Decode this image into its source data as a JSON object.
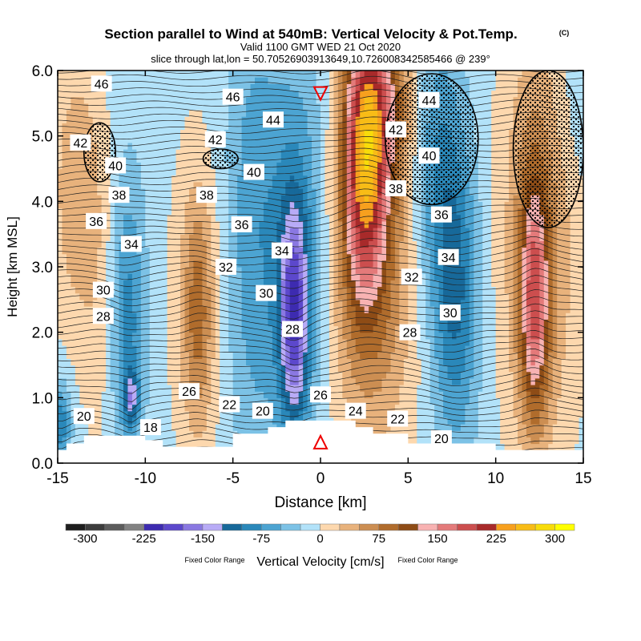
{
  "chart_data": {
    "type": "heatmap",
    "title": "Section parallel to Wind at 540mB: Vertical Velocity & Pot.Temp.",
    "title_mark": "(C)",
    "subtitle1": "Valid 1100 GMT WED 21 Oct 2020",
    "subtitle2": "slice through lat,lon = 50.70526903913649,10.726008342585466 @ 239°",
    "xlabel": "Distance [km]",
    "ylabel": "Height [km MSL]",
    "xlim": [
      -15,
      15
    ],
    "ylim": [
      0,
      6
    ],
    "xticks": [
      "-15",
      "-10",
      "-5",
      "0",
      "5",
      "10",
      "15"
    ],
    "yticks": [
      "0.0",
      "1.0",
      "2.0",
      "3.0",
      "4.0",
      "5.0",
      "6.0"
    ],
    "colorbar": {
      "label": "Vertical Velocity [cm/s]",
      "note_left": "Fixed Color Range",
      "note_right": "Fixed Color Range",
      "min": -325,
      "max": 325,
      "step": 25,
      "tick_labels": [
        "-300",
        "-225",
        "-150",
        "-75",
        "0",
        "75",
        "150",
        "225",
        "300"
      ],
      "colors": [
        "#1e1e1e",
        "#3c3c3c",
        "#5c5c5c",
        "#828282",
        "#3d2bb0",
        "#5c48cc",
        "#8a78e2",
        "#b8abf6",
        "#17699a",
        "#2a88ba",
        "#4ca4d2",
        "#7cc2e6",
        "#b2e2f9",
        "#fdd8ae",
        "#e8b27c",
        "#cc8e52",
        "#b06c2c",
        "#8e4c16",
        "#f8b2b2",
        "#e47a7a",
        "#cc4e4e",
        "#a82a2a",
        "#f7a01e",
        "#f8bc16",
        "#f8dc0a",
        "#ffff00"
      ]
    },
    "velocity_background_cms": -12,
    "velocity_features_km_cms": [
      {
        "x": -14,
        "z": 4.2,
        "w": 55,
        "sx": 1.0,
        "sz": 1.5
      },
      {
        "x": -12.6,
        "z": 2.5,
        "w": 25,
        "sx": 0.8,
        "sz": 2.0
      },
      {
        "x": -11,
        "z": 2.2,
        "w": -75,
        "sx": 0.7,
        "sz": 1.5
      },
      {
        "x": -10.8,
        "z": 1.0,
        "w": -95,
        "sx": 0.3,
        "sz": 0.3
      },
      {
        "x": -7,
        "z": 2.3,
        "w": 75,
        "sx": 0.6,
        "sz": 1.2
      },
      {
        "x": -7,
        "z": 2.5,
        "w": 30,
        "sx": 1.3,
        "sz": 2.0
      },
      {
        "x": -3.8,
        "z": 3.5,
        "w": -55,
        "sx": 1.2,
        "sz": 2.5
      },
      {
        "x": -1.5,
        "z": 2.2,
        "w": -150,
        "sx": 0.6,
        "sz": 1.2
      },
      {
        "x": -1.2,
        "z": 3.5,
        "w": -60,
        "sx": 1.2,
        "sz": 2.0
      },
      {
        "x": 2.5,
        "z": 4.6,
        "w": 185,
        "sx": 0.9,
        "sz": 1.5
      },
      {
        "x": 3.5,
        "z": 5.6,
        "w": 100,
        "sx": 1.2,
        "sz": 1.0
      },
      {
        "x": 3.0,
        "z": 3.0,
        "w": 85,
        "sx": 1.8,
        "sz": 2.0
      },
      {
        "x": 7.7,
        "z": 2.6,
        "w": -95,
        "sx": 0.9,
        "sz": 1.6
      },
      {
        "x": 6.5,
        "z": 4.6,
        "w": -60,
        "sx": 1.0,
        "sz": 1.5
      },
      {
        "x": 12.2,
        "z": 2.5,
        "w": 150,
        "sx": 0.6,
        "sz": 1.3
      },
      {
        "x": 12.5,
        "z": 3.6,
        "w": 70,
        "sx": 1.6,
        "sz": 2.5
      },
      {
        "x": 14.5,
        "z": 5.5,
        "w": -20,
        "sx": 1.0,
        "sz": 1.0
      },
      {
        "x": -14.8,
        "z": 0.6,
        "w": -85,
        "sx": 0.4,
        "sz": 0.4
      }
    ],
    "theta_labels": [
      {
        "text": "46",
        "x": -12.5,
        "z": 5.8
      },
      {
        "text": "46",
        "x": -5,
        "z": 5.6
      },
      {
        "text": "44",
        "x": -2.7,
        "z": 5.25
      },
      {
        "text": "42",
        "x": -13.7,
        "z": 4.9
      },
      {
        "text": "42",
        "x": -6,
        "z": 4.95
      },
      {
        "text": "40",
        "x": -11.7,
        "z": 4.55
      },
      {
        "text": "40",
        "x": -3.8,
        "z": 4.45
      },
      {
        "text": "38",
        "x": -11.5,
        "z": 4.1
      },
      {
        "text": "38",
        "x": -6.5,
        "z": 4.1
      },
      {
        "text": "38",
        "x": 4.3,
        "z": 4.2
      },
      {
        "text": "36",
        "x": -12.8,
        "z": 3.7
      },
      {
        "text": "36",
        "x": -4.5,
        "z": 3.65
      },
      {
        "text": "36",
        "x": 6.9,
        "z": 3.8
      },
      {
        "text": "34",
        "x": -10.8,
        "z": 3.35
      },
      {
        "text": "34",
        "x": -2.2,
        "z": 3.25
      },
      {
        "text": "34",
        "x": 7.3,
        "z": 3.15
      },
      {
        "text": "32",
        "x": -5.4,
        "z": 3.0
      },
      {
        "text": "32",
        "x": 5.2,
        "z": 2.85
      },
      {
        "text": "30",
        "x": -12.4,
        "z": 2.65
      },
      {
        "text": "30",
        "x": -3.1,
        "z": 2.6
      },
      {
        "text": "30",
        "x": 7.4,
        "z": 2.3
      },
      {
        "text": "28",
        "x": -12.4,
        "z": 2.25
      },
      {
        "text": "28",
        "x": -1.6,
        "z": 2.05
      },
      {
        "text": "28",
        "x": 5.1,
        "z": 2.0
      },
      {
        "text": "26",
        "x": -7.5,
        "z": 1.1
      },
      {
        "text": "26",
        "x": 0,
        "z": 1.05
      },
      {
        "text": "24",
        "x": 2,
        "z": 0.8
      },
      {
        "text": "22",
        "x": -5.2,
        "z": 0.9
      },
      {
        "text": "22",
        "x": 4.4,
        "z": 0.68
      },
      {
        "text": "20",
        "x": -13.5,
        "z": 0.72
      },
      {
        "text": "20",
        "x": -3.3,
        "z": 0.8
      },
      {
        "text": "20",
        "x": 6.9,
        "z": 0.38
      },
      {
        "text": "18",
        "x": -9.7,
        "z": 0.55
      },
      {
        "text": "42",
        "x": 4.3,
        "z": 5.1
      },
      {
        "text": "44",
        "x": 6.2,
        "z": 5.55
      },
      {
        "text": "40",
        "x": 6.2,
        "z": 4.7
      }
    ],
    "stippled_regions": [
      {
        "x": [
          -13.5,
          -11.7
        ],
        "z": [
          4.3,
          5.2
        ]
      },
      {
        "x": [
          -6.7,
          -4.7
        ],
        "z": [
          4.5,
          4.8
        ]
      },
      {
        "x": [
          3.7,
          9.0
        ],
        "z": [
          3.95,
          5.95
        ]
      },
      {
        "x": [
          11.0,
          15.0
        ],
        "z": [
          3.6,
          6.0
        ]
      }
    ],
    "markers": [
      {
        "symbol": "down-triangle",
        "x": 0,
        "z": 5.65
      },
      {
        "symbol": "up-triangle",
        "x": 0,
        "z": 0.32
      }
    ]
  }
}
